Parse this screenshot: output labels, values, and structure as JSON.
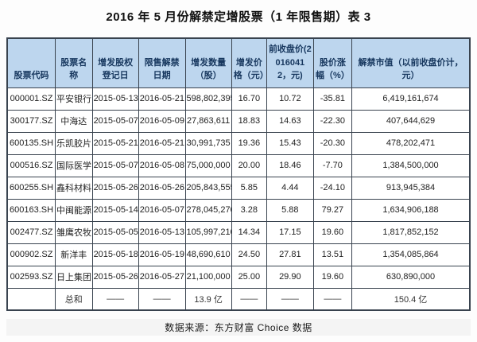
{
  "page": {
    "title": "2016 年 5 月份解禁定增股票（1 年限售期）表 3",
    "footer": "数据来源：东方财富 Choice 数据"
  },
  "colors": {
    "header_bg": "#bdd6ee",
    "header_text": "#17375e",
    "border": "#39434f",
    "cell_text": "#222222"
  },
  "table": {
    "headers": [
      "股票代码",
      "股票名称",
      "增发股权登记日",
      "限售解禁日期",
      "增发数量（股）",
      "增发价格（元）",
      "前收盘价(20160412，元)",
      "股价涨幅（%）",
      "解禁市值（以前收盘价计，元）"
    ],
    "rows": [
      [
        "000001.SZ",
        "平安银行",
        "2015-05-13",
        "2016-05-21",
        "598,802,395",
        "16.70",
        "10.72",
        "-35.81",
        "6,419,161,674"
      ],
      [
        "300177.SZ",
        "中海达",
        "2015-05-07",
        "2016-05-09",
        "27,863,611",
        "18.83",
        "14.63",
        "-22.30",
        "407,644,629"
      ],
      [
        "600135.SH",
        "乐凯胶片",
        "2015-05-21",
        "2016-05-21",
        "30,991,735",
        "19.36",
        "15.43",
        "-20.30",
        "478,202,471"
      ],
      [
        "000516.SZ",
        "国际医学",
        "2015-05-07",
        "2016-05-08",
        "75,000,000",
        "20.00",
        "18.46",
        "-7.70",
        "1,384,500,000"
      ],
      [
        "600255.SH",
        "鑫科材料",
        "2015-05-26",
        "2016-05-26",
        "205,843,555",
        "5.85",
        "4.44",
        "-24.10",
        "913,945,384"
      ],
      [
        "600163.SH",
        "中闽能源",
        "2015-05-14",
        "2016-05-07",
        "278,045,270",
        "3.28",
        "5.88",
        "79.27",
        "1,634,906,188"
      ],
      [
        "002477.SZ",
        "雏鹰农牧",
        "2015-05-05",
        "2016-05-13",
        "105,997,210",
        "14.34",
        "17.15",
        "19.60",
        "1,817,852,152"
      ],
      [
        "000902.SZ",
        "新洋丰",
        "2015-05-18",
        "2016-05-19",
        "48,690,610",
        "24.50",
        "27.81",
        "13.51",
        "1,354,085,864"
      ],
      [
        "002593.SZ",
        "日上集团",
        "2015-05-26",
        "2016-05-27",
        "21,100,000",
        "25.00",
        "29.90",
        "19.60",
        "630,890,000"
      ]
    ],
    "total_row": [
      "",
      "总和",
      "——",
      "——",
      "13.9 亿",
      "——",
      "——",
      "——",
      "150.4 亿"
    ]
  }
}
